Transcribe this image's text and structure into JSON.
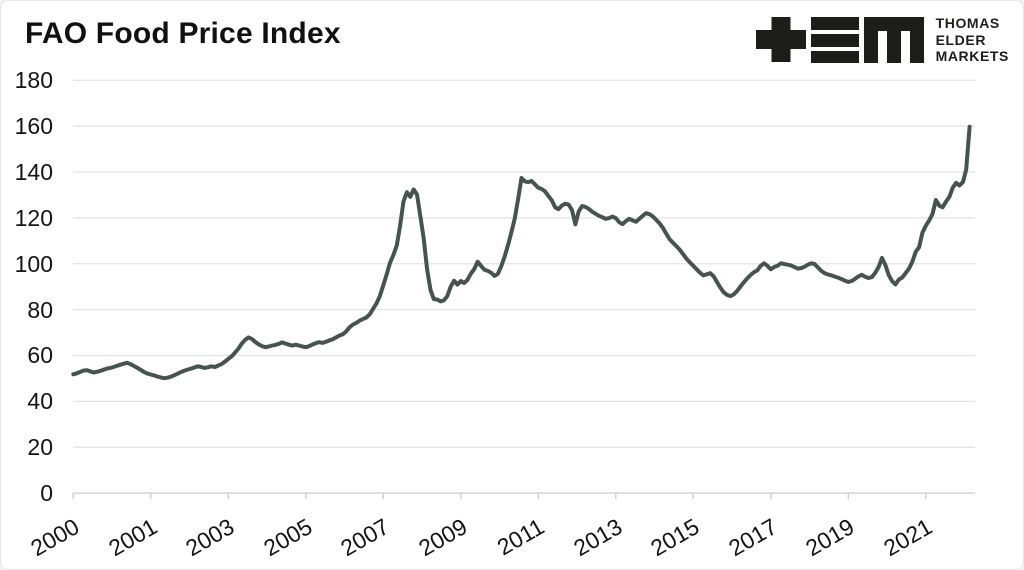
{
  "header": {
    "title": "FAO Food Price Index"
  },
  "branding": {
    "logo_glyphs": [
      "plus-icon",
      "triple-bar-icon",
      "m-block-icon"
    ],
    "logo_lines": [
      "THOMAS",
      "ELDER",
      "MARKETS"
    ]
  },
  "colors": {
    "background": "#ffffff",
    "card_border": "#e6e6e6",
    "line": "#45544f",
    "grid": "#e3e3e3",
    "axis": "#d4d4d4",
    "tick": "#cfcfcf",
    "text": "#141414",
    "logo": "#1d1d1b"
  },
  "chart_data": {
    "type": "line",
    "title": "FAO Food Price Index",
    "frequency": "monthly",
    "x_start": "2000-01",
    "x_end": "2022-03",
    "xlabel": "",
    "ylabel": "",
    "ylim": [
      0,
      180
    ],
    "yticks": [
      0,
      20,
      40,
      60,
      80,
      100,
      120,
      140,
      160,
      180
    ],
    "xticks": [
      "2000",
      "2001",
      "2003",
      "2005",
      "2007",
      "2009",
      "2011",
      "2013",
      "2015",
      "2017",
      "2019",
      "2021"
    ],
    "xtick_every_months": 23,
    "grid": "horizontal-only",
    "legend": "none",
    "series": [
      {
        "name": "FAO Food Price Index",
        "values": [
          51.8,
          52.2,
          52.8,
          53.4,
          53.6,
          53.1,
          52.6,
          52.9,
          53.3,
          53.8,
          54.3,
          54.6,
          55.0,
          55.5,
          56.0,
          56.4,
          56.8,
          56.2,
          55.4,
          54.6,
          53.7,
          52.8,
          52.1,
          51.7,
          51.3,
          50.8,
          50.4,
          50.1,
          50.3,
          50.8,
          51.4,
          52.1,
          52.8,
          53.4,
          53.9,
          54.3,
          54.8,
          55.3,
          55.0,
          54.6,
          54.9,
          55.3,
          55.0,
          55.6,
          56.3,
          57.3,
          58.5,
          59.7,
          61.2,
          63.0,
          65.2,
          66.8,
          67.9,
          67.2,
          65.9,
          64.9,
          64.1,
          63.6,
          63.9,
          64.3,
          64.6,
          65.1,
          65.7,
          65.2,
          64.7,
          64.3,
          64.7,
          64.3,
          63.9,
          63.6,
          64.1,
          64.8,
          65.4,
          65.8,
          65.5,
          66.0,
          66.6,
          67.1,
          67.9,
          68.7,
          69.3,
          70.5,
          72.3,
          73.5,
          74.2,
          75.2,
          75.9,
          76.6,
          78.0,
          80.4,
          82.8,
          86.0,
          90.6,
          95.4,
          100.4,
          103.8,
          108.0,
          116.6,
          127.2,
          131.2,
          129.2,
          132.4,
          130.2,
          120.6,
          111.0,
          97.6,
          88.6,
          84.6,
          84.4,
          83.6,
          84.1,
          85.9,
          90.0,
          92.6,
          90.9,
          92.5,
          91.6,
          93.0,
          95.7,
          97.7,
          100.9,
          99.1,
          97.4,
          96.9,
          96.1,
          94.7,
          95.6,
          98.9,
          103.1,
          108.1,
          113.6,
          119.6,
          128.2,
          137.4,
          135.9,
          135.6,
          136.1,
          134.6,
          133.1,
          132.6,
          131.6,
          129.6,
          127.6,
          124.6,
          123.8,
          125.4,
          126.2,
          125.8,
          123.4,
          117.2,
          122.8,
          125.2,
          124.8,
          123.9,
          122.7,
          121.8,
          120.9,
          120.3,
          119.6,
          119.9,
          120.6,
          119.9,
          118.1,
          117.3,
          118.6,
          119.6,
          118.9,
          118.3,
          119.6,
          120.9,
          122.1,
          121.6,
          120.6,
          119.1,
          117.6,
          115.6,
          113.1,
          110.6,
          109.1,
          107.6,
          106.1,
          104.1,
          102.1,
          100.6,
          99.1,
          97.6,
          96.1,
          94.9,
          95.4,
          95.9,
          94.6,
          92.1,
          89.6,
          87.6,
          86.4,
          85.9,
          86.6,
          88.1,
          90.1,
          91.9,
          93.6,
          95.1,
          96.3,
          97.1,
          99.1,
          100.2,
          99.1,
          97.6,
          98.6,
          99.1,
          100.2,
          99.9,
          99.6,
          99.3,
          98.6,
          97.9,
          98.1,
          98.7,
          99.6,
          100.2,
          99.9,
          98.3,
          96.9,
          95.9,
          95.3,
          94.9,
          94.4,
          93.9,
          93.3,
          92.6,
          92.1,
          92.5,
          93.4,
          94.5,
          95.2,
          94.3,
          93.8,
          94.2,
          96.1,
          98.6,
          102.5,
          99.4,
          95.1,
          92.4,
          91.0,
          93.1,
          94.0,
          95.9,
          97.9,
          100.8,
          105.2,
          107.2,
          113.5,
          116.6,
          118.9,
          121.7,
          127.8,
          125.3,
          124.6,
          127.1,
          129.2,
          133.2,
          135.3,
          134.1,
          135.6,
          141.1,
          159.7
        ]
      }
    ]
  }
}
